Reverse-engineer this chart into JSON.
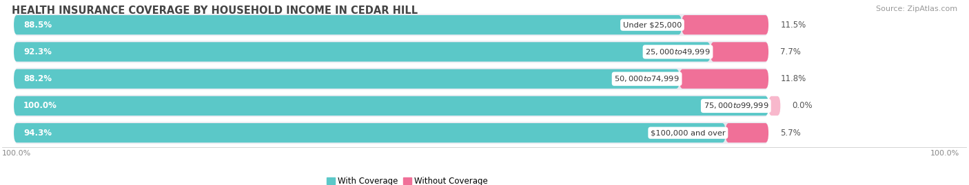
{
  "title": "HEALTH INSURANCE COVERAGE BY HOUSEHOLD INCOME IN CEDAR HILL",
  "source": "Source: ZipAtlas.com",
  "categories": [
    "Under $25,000",
    "$25,000 to $49,999",
    "$50,000 to $74,999",
    "$75,000 to $99,999",
    "$100,000 and over"
  ],
  "with_coverage": [
    88.5,
    92.3,
    88.2,
    100.0,
    94.3
  ],
  "without_coverage": [
    11.5,
    7.7,
    11.8,
    0.0,
    5.7
  ],
  "color_with": "#5BC8C8",
  "color_without": "#F07098",
  "color_without_light": "#F8B8CC",
  "bar_bg": "#E8E8EE",
  "bar_bg_outer": "#EEEEF4",
  "legend_with": "With Coverage",
  "legend_without": "Without Coverage",
  "bottom_left_label": "100.0%",
  "bottom_right_label": "100.0%",
  "title_fontsize": 10.5,
  "label_fontsize": 8.5,
  "tick_fontsize": 8.0,
  "source_fontsize": 8.0
}
